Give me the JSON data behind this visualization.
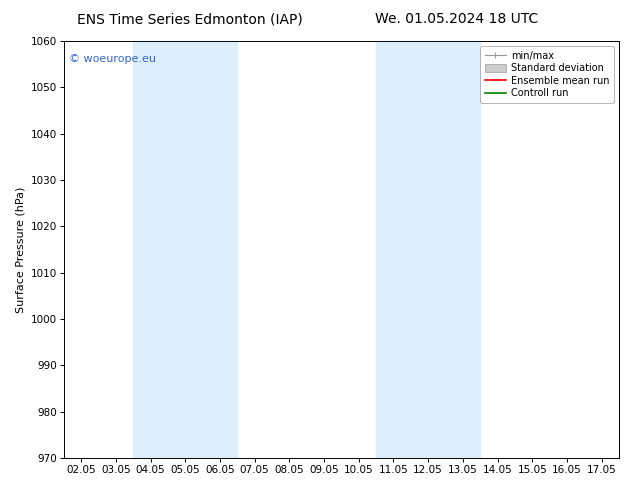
{
  "title_left": "ENS Time Series Edmonton (IAP)",
  "title_right": "We. 01.05.2024 18 UTC",
  "ylabel": "Surface Pressure (hPa)",
  "ylim": [
    970,
    1060
  ],
  "yticks": [
    970,
    980,
    990,
    1000,
    1010,
    1020,
    1030,
    1040,
    1050,
    1060
  ],
  "xtick_labels": [
    "02.05",
    "03.05",
    "04.05",
    "05.05",
    "06.05",
    "07.05",
    "08.05",
    "09.05",
    "10.05",
    "11.05",
    "12.05",
    "13.05",
    "14.05",
    "15.05",
    "16.05",
    "17.05"
  ],
  "xmin": 0,
  "xmax": 15,
  "shaded_bands": [
    {
      "xmin": 2,
      "xmax": 4,
      "color": "#dceefb"
    },
    {
      "xmin": 9,
      "xmax": 11,
      "color": "#dceefb"
    }
  ],
  "background_color": "#ffffff",
  "watermark_text": "© woeurope.eu",
  "watermark_color": "#3366cc",
  "legend_entries": [
    {
      "label": "min/max",
      "color": "#999999"
    },
    {
      "label": "Standard deviation",
      "color": "#cccccc"
    },
    {
      "label": "Ensemble mean run",
      "color": "#ff0000"
    },
    {
      "label": "Controll run",
      "color": "#008000"
    }
  ],
  "title_fontsize": 10,
  "ylabel_fontsize": 8,
  "tick_fontsize": 7.5,
  "legend_fontsize": 7,
  "watermark_fontsize": 8
}
